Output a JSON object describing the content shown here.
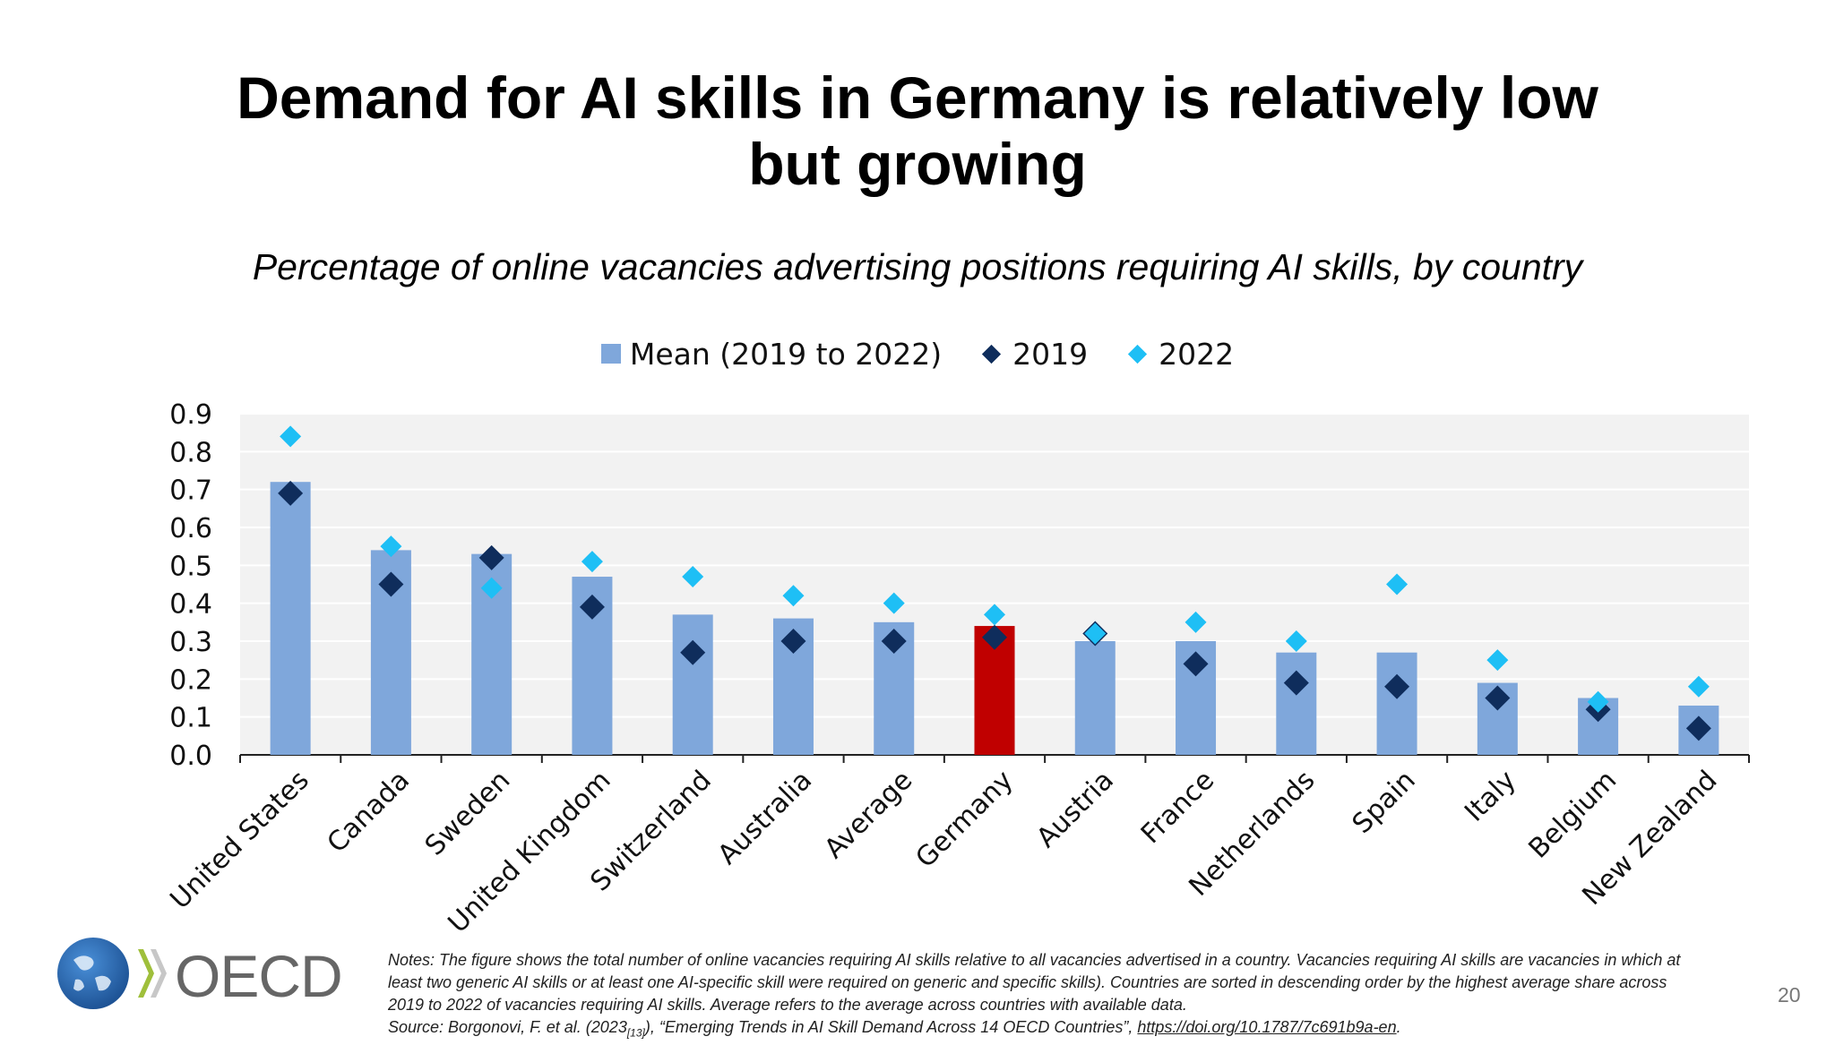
{
  "slide": {
    "title_line1": "Demand for AI skills in Germany is relatively low",
    "title_line2": "but growing",
    "subtitle": "Percentage of online vacancies advertising positions requiring AI skills, by country",
    "page_number": "20"
  },
  "logo": {
    "text": "OECD"
  },
  "notes": {
    "line1": "Notes: The figure shows the total number of online vacancies requiring AI skills relative to all vacancies advertised in a country. Vacancies requiring AI skills are vacancies in which at",
    "line2": "least two generic AI skills or at least one AI-specific skill were required on generic and specific skills). Countries are sorted in descending order by the highest average share across",
    "line3": "2019 to 2022 of vacancies requiring AI skills. Average refers to the average across countries with available data.",
    "source_prefix": "Source: Borgonovi, F. et al. (2023",
    "source_ref": "[13]",
    "source_middle": "), “Emerging Trends in AI Skill Demand Across 14 OECD Countries”, ",
    "source_link": "https://doi.org/10.1787/7c691b9a-en",
    "source_end": "."
  },
  "chart_data": {
    "type": "bar",
    "categories": [
      "United States",
      "Canada",
      "Sweden",
      "United Kingdom",
      "Switzerland",
      "Australia",
      "Average",
      "Germany",
      "Austria",
      "France",
      "Netherlands",
      "Spain",
      "Italy",
      "Belgium",
      "New Zealand"
    ],
    "series": [
      {
        "name": "Mean (2019 to 2022)",
        "type": "bar",
        "values": [
          0.72,
          0.54,
          0.53,
          0.47,
          0.37,
          0.36,
          0.35,
          0.34,
          0.3,
          0.3,
          0.27,
          0.27,
          0.19,
          0.15,
          0.13
        ]
      },
      {
        "name": "2019",
        "type": "scatter",
        "marker": "diamond",
        "values": [
          0.69,
          0.45,
          0.52,
          0.39,
          0.27,
          0.3,
          0.3,
          0.31,
          0.32,
          0.24,
          0.19,
          0.18,
          0.15,
          0.12,
          0.07
        ]
      },
      {
        "name": "2022",
        "type": "scatter",
        "marker": "diamond",
        "values": [
          0.84,
          0.55,
          0.44,
          0.51,
          0.47,
          0.42,
          0.4,
          0.37,
          0.32,
          0.35,
          0.3,
          0.45,
          0.25,
          0.14,
          0.18
        ]
      }
    ],
    "highlight_category": "Germany",
    "y_ticks": [
      "0.0",
      "0.1",
      "0.2",
      "0.3",
      "0.4",
      "0.5",
      "0.6",
      "0.7",
      "0.8",
      "0.9"
    ],
    "ylim": [
      0,
      0.9
    ],
    "grid": true,
    "legend_position": "top-center",
    "xlabel": "",
    "ylabel": "",
    "colors": {
      "bar": "#7FA7DB",
      "highlight_bar": "#C00000",
      "s2019": "#0F2D5C",
      "s2022": "#1EBFF5",
      "plot_bg": "#F2F2F2",
      "gridline": "#FFFFFF"
    }
  }
}
